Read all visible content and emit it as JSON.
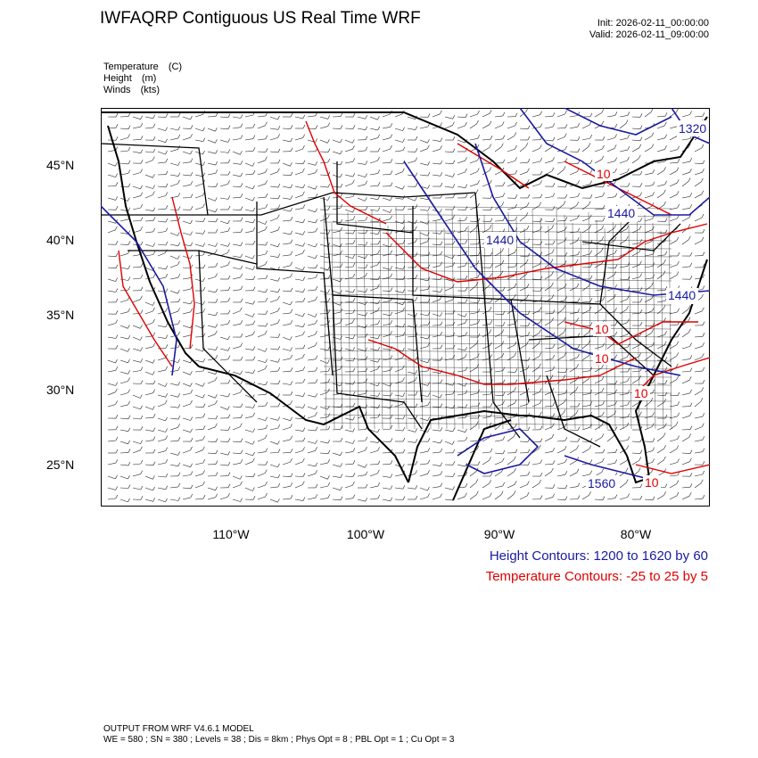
{
  "header": {
    "title": "IWFAQRP Contiguous US Real Time WRF",
    "init": "Init: 2026-02-11_00:00:00",
    "valid": "Valid: 2026-02-11_09:00:00"
  },
  "variables": [
    {
      "name": "Temperature",
      "unit": "(C)"
    },
    {
      "name": "Height",
      "unit": "(m)"
    },
    {
      "name": "Winds",
      "unit": "(kts)"
    }
  ],
  "axes": {
    "lat_labels": [
      "45°N",
      "40°N",
      "35°N",
      "30°N",
      "25°N"
    ],
    "lon_labels": [
      "110°W",
      "100°W",
      "90°W",
      "80°W"
    ]
  },
  "contour_labels": {
    "height": [
      "1440",
      "1440",
      "1440",
      "1320",
      "1320",
      "1560"
    ],
    "temperature": [
      "10",
      "10",
      "10",
      "10",
      "10"
    ]
  },
  "legend": {
    "height": "Height Contours: 1200 to 1620 by 60",
    "temperature": "Temperature Contours: -25 to 25 by 5"
  },
  "footer": {
    "line1": "OUTPUT FROM WRF V4.6.1 MODEL",
    "line2": "WE = 580 ; SN = 380 ; Levels = 38 ; Dis = 8km ; Phys Opt = 8 ; PBL Opt = 1 ; Cu Opt = 3"
  },
  "colors": {
    "height_contour": "#1a1aa0",
    "temperature_contour": "#e00000",
    "boundaries": "#000000"
  }
}
